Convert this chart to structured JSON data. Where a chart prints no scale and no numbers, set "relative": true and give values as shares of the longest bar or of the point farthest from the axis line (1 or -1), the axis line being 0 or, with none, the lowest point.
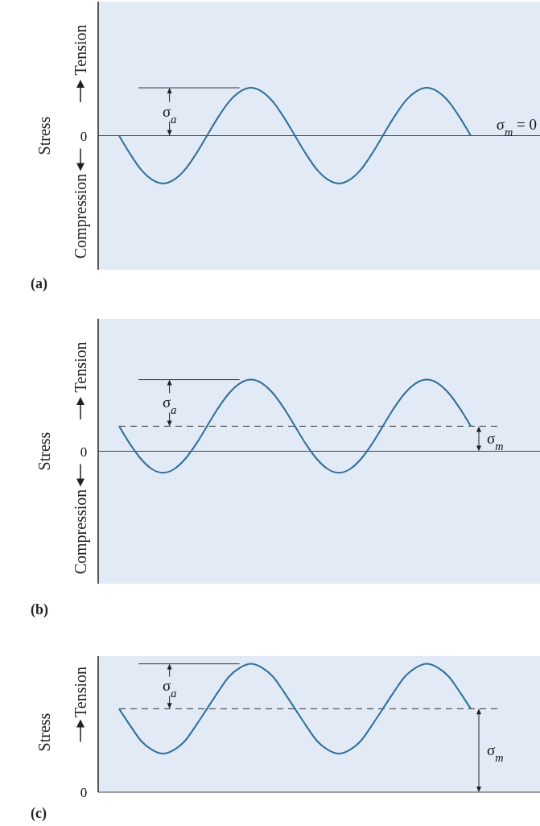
{
  "chart_data": [
    {
      "type": "line",
      "title": "(a)",
      "ylabel": "Stress",
      "relative": true,
      "categories": [
        null,
        null,
        null,
        null,
        null,
        null,
        null,
        null,
        null,
        null,
        null,
        null,
        null,
        null,
        null,
        null,
        null,
        null,
        null,
        null,
        null,
        null,
        null,
        null,
        null,
        null,
        null,
        null,
        null,
        null,
        null,
        null,
        null
      ],
      "series": [
        {
          "color": "#2f6e99",
          "values": [
            0,
            -0.38,
            -0.71,
            -0.92,
            -1,
            -0.92,
            -0.71,
            -0.38,
            0,
            0.38,
            0.71,
            0.92,
            1,
            0.92,
            0.71,
            0.38,
            0,
            -0.38,
            -0.71,
            -0.92,
            -1,
            -0.92,
            -0.71,
            -0.38,
            0,
            0.38,
            0.71,
            0.92,
            1,
            0.92,
            0.71,
            0.38,
            0
          ]
        }
      ],
      "annotations": [
        "0",
        "σ$_{a}$",
        "σ$_{m}$ = 0",
        "Tension",
        "Compression"
      ],
      "marker": "none",
      "line_style": "solid"
    },
    {
      "type": "line",
      "title": "(b)",
      "ylabel": "Stress",
      "relative": true,
      "categories": [
        null,
        null,
        null,
        null,
        null,
        null,
        null,
        null,
        null,
        null,
        null,
        null,
        null,
        null,
        null,
        null,
        null,
        null,
        null,
        null,
        null,
        null,
        null,
        null,
        null,
        null,
        null,
        null,
        null,
        null,
        null,
        null,
        null
      ],
      "series": [
        {
          "color": "#2f6e99",
          "values": [
            0.35,
            0.1,
            -0.11,
            -0.25,
            -0.3,
            -0.25,
            -0.11,
            0.1,
            0.35,
            0.6,
            0.81,
            0.95,
            1,
            0.95,
            0.81,
            0.6,
            0.35,
            0.1,
            -0.11,
            -0.25,
            -0.3,
            -0.25,
            -0.11,
            0.1,
            0.35,
            0.6,
            0.81,
            0.95,
            1,
            0.95,
            0.81,
            0.6,
            0.35
          ]
        }
      ],
      "ref_lines": [
        {
          "axis": "y",
          "value": 0.35,
          "line_style": "dashed",
          "color": "#333333"
        }
      ],
      "annotations": [
        "0",
        "σ$_{a}$",
        "σ$_{m}$",
        "Tension",
        "Compression"
      ],
      "marker": "none",
      "line_style": "solid"
    },
    {
      "type": "line",
      "title": "(c)",
      "ylabel": "Stress",
      "relative": true,
      "categories": [
        null,
        null,
        null,
        null,
        null,
        null,
        null,
        null,
        null,
        null,
        null,
        null,
        null,
        null,
        null,
        null,
        null,
        null,
        null,
        null,
        null,
        null,
        null,
        null,
        null,
        null,
        null,
        null,
        null,
        null,
        null,
        null,
        null
      ],
      "series": [
        {
          "color": "#2f6e99",
          "values": [
            0.65,
            0.52,
            0.4,
            0.33,
            0.3,
            0.33,
            0.4,
            0.52,
            0.65,
            0.78,
            0.9,
            0.97,
            1,
            0.97,
            0.9,
            0.78,
            0.65,
            0.52,
            0.4,
            0.33,
            0.3,
            0.33,
            0.4,
            0.52,
            0.65,
            0.78,
            0.9,
            0.97,
            1,
            0.97,
            0.9,
            0.78,
            0.65
          ]
        }
      ],
      "ref_lines": [
        {
          "axis": "y",
          "value": 0.65,
          "line_style": "dashed",
          "color": "#333333"
        }
      ],
      "annotations": [
        "0",
        "σ$_{a}$",
        "σ$_{m}$",
        "Tension"
      ],
      "marker": "none",
      "line_style": "solid"
    }
  ]
}
